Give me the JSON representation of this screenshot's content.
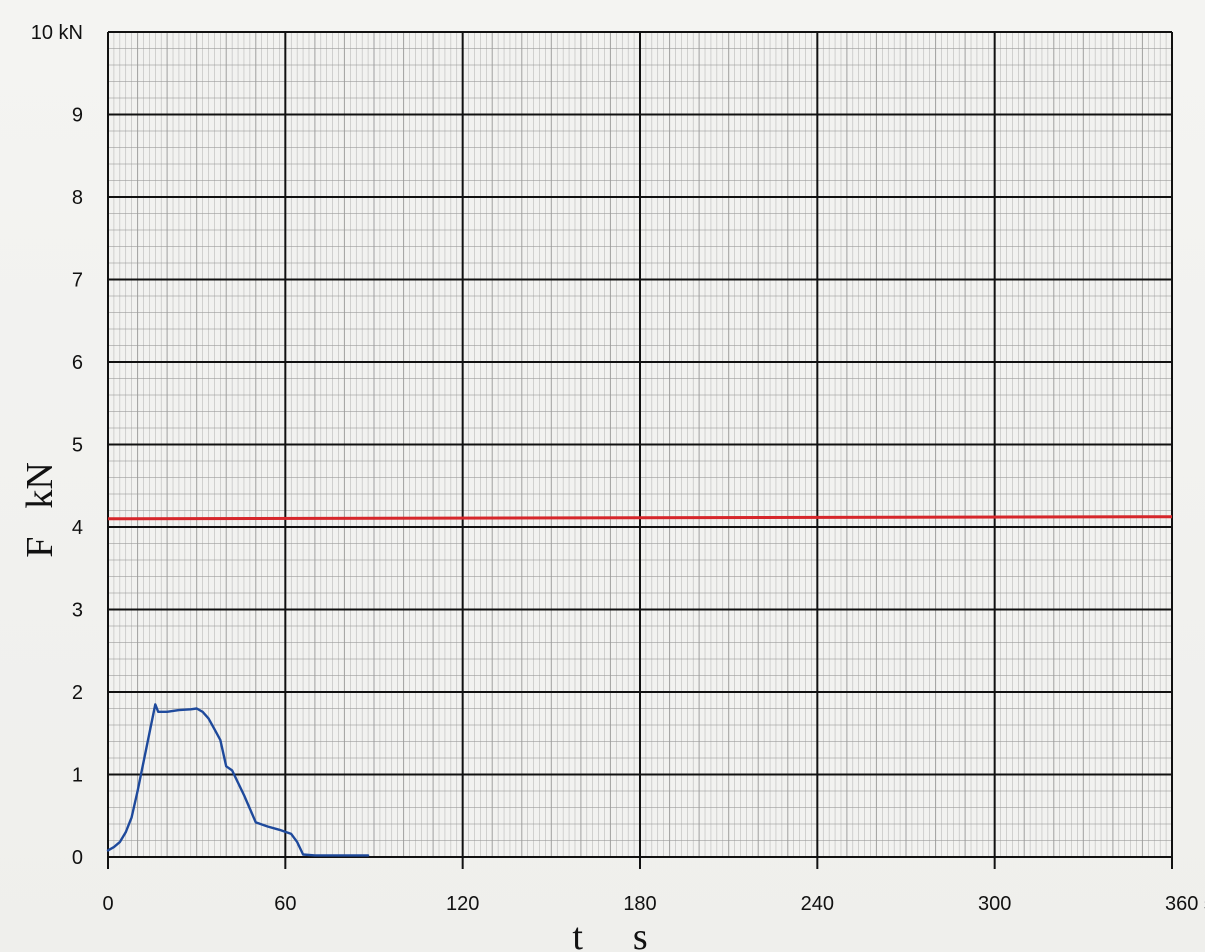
{
  "chart_data": {
    "type": "line",
    "xlabel": "t",
    "ylabel": "F",
    "xlabel_unit": "s",
    "ylabel_unit": "kN",
    "xlim": [
      0,
      360
    ],
    "ylim": [
      0,
      10
    ],
    "grid": "on",
    "x_ticks": [
      "0",
      "60",
      "120",
      "180",
      "240",
      "300",
      "360 s"
    ],
    "y_ticks": [
      "0",
      "1",
      "2",
      "3",
      "4",
      "5",
      "6",
      "7",
      "8",
      "9",
      "10 kN"
    ],
    "colors": {
      "major_grid": "#111111",
      "minor_grid": "#9a9a9a",
      "series_force": "#1f4a9c",
      "reference_line": "#d6262b"
    },
    "series": [
      {
        "x": [
          0,
          2,
          4,
          6,
          8,
          10,
          12,
          14,
          16,
          17,
          20,
          24,
          28,
          30,
          32,
          34,
          36,
          38,
          40,
          42,
          46,
          50,
          54,
          58,
          62,
          64,
          66,
          70,
          80,
          88
        ],
        "y": [
          0.08,
          0.12,
          0.18,
          0.3,
          0.48,
          0.8,
          1.15,
          1.5,
          1.85,
          1.76,
          1.76,
          1.78,
          1.79,
          1.8,
          1.76,
          1.68,
          1.55,
          1.42,
          1.1,
          1.05,
          0.75,
          0.42,
          0.37,
          0.33,
          0.28,
          0.18,
          0.03,
          0.02,
          0.02,
          0.02
        ]
      }
    ],
    "reference_lines": [
      {
        "y": 4.1
      }
    ]
  }
}
